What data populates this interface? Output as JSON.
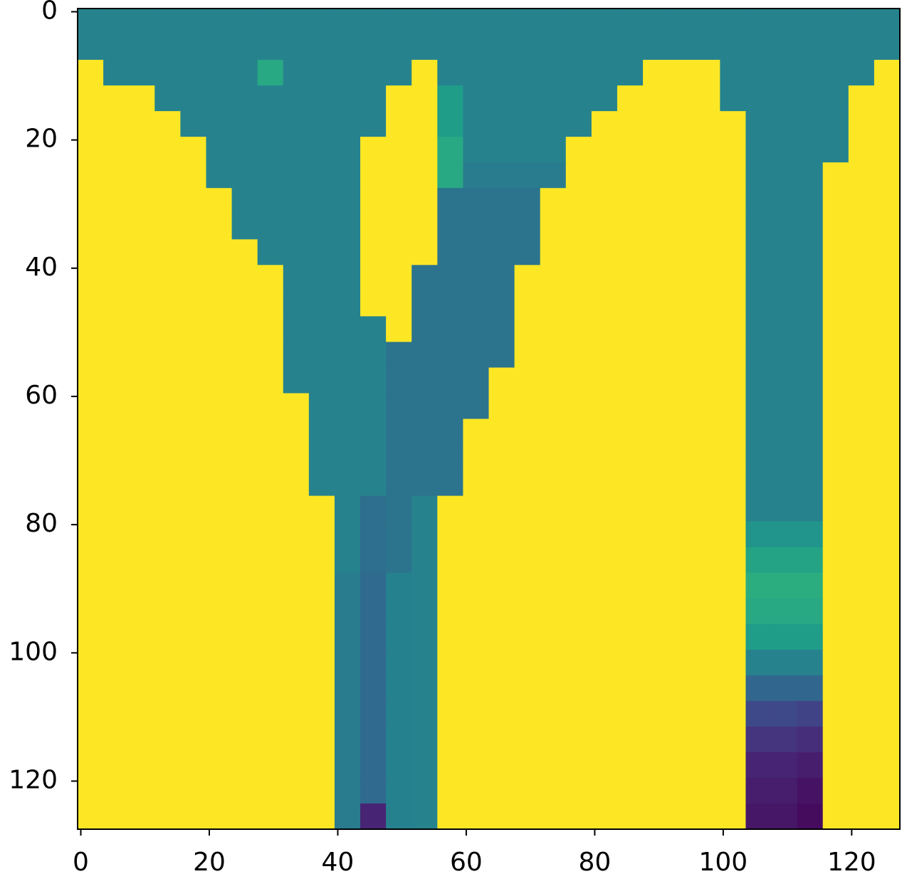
{
  "chart_data": {
    "type": "heatmap",
    "colormap": "viridis",
    "xlim": [
      -0.5,
      127.5
    ],
    "ylim": [
      127.5,
      -0.5
    ],
    "xticks": [
      0,
      20,
      40,
      60,
      80,
      100,
      120
    ],
    "yticks": [
      0,
      20,
      40,
      60,
      80,
      100,
      120
    ],
    "z": [
      [
        0.45,
        0.45,
        0.45,
        0.45,
        0.45,
        0.45,
        0.45,
        0.45,
        0.45,
        0.45,
        0.45,
        0.45,
        0.45,
        0.45,
        0.45,
        0.45,
        0.45,
        0.45,
        0.45,
        0.45,
        0.45,
        0.45,
        0.45,
        0.45,
        0.45,
        0.45,
        0.45,
        0.45,
        0.45,
        0.45,
        0.45,
        0.45
      ],
      [
        0.45,
        0.45,
        0.45,
        0.45,
        0.45,
        0.45,
        0.45,
        0.45,
        0.45,
        0.45,
        0.45,
        0.45,
        0.45,
        0.45,
        0.45,
        0.45,
        0.45,
        0.45,
        0.45,
        0.45,
        0.45,
        0.45,
        0.45,
        0.45,
        0.45,
        0.45,
        0.45,
        0.45,
        0.45,
        0.45,
        0.45,
        0.45
      ],
      [
        1,
        0.45,
        0.45,
        0.45,
        0.45,
        0.45,
        0.45,
        0.6,
        0.45,
        0.45,
        0.45,
        0.45,
        0.45,
        1,
        0.45,
        0.45,
        0.45,
        0.45,
        0.45,
        0.45,
        0.45,
        0.45,
        1,
        1,
        1,
        0.45,
        0.45,
        0.45,
        0.45,
        0.45,
        0.45,
        1
      ],
      [
        1,
        1,
        1,
        0.45,
        0.45,
        0.45,
        0.45,
        0.45,
        0.45,
        0.45,
        0.45,
        0.45,
        1,
        1,
        0.55,
        0.45,
        0.45,
        0.45,
        0.45,
        0.45,
        0.45,
        1,
        1,
        1,
        1,
        0.45,
        0.45,
        0.45,
        0.45,
        0.45,
        1,
        1
      ],
      [
        1,
        1,
        1,
        1,
        0.45,
        0.45,
        0.45,
        0.45,
        0.45,
        0.45,
        0.45,
        0.45,
        1,
        1,
        0.55,
        0.45,
        0.45,
        0.45,
        0.45,
        0.45,
        1,
        1,
        1,
        1,
        1,
        1,
        0.45,
        0.45,
        0.45,
        0.45,
        1,
        1
      ],
      [
        1,
        1,
        1,
        1,
        1,
        0.45,
        0.45,
        0.45,
        0.45,
        0.45,
        0.45,
        1,
        1,
        1,
        0.6,
        0.45,
        0.45,
        0.45,
        0.45,
        1,
        1,
        1,
        1,
        1,
        1,
        1,
        0.45,
        0.45,
        0.45,
        0.45,
        1,
        1
      ],
      [
        1,
        1,
        1,
        1,
        1,
        0.45,
        0.45,
        0.45,
        0.45,
        0.45,
        0.45,
        1,
        1,
        1,
        0.6,
        0.42,
        0.42,
        0.42,
        0.42,
        1,
        1,
        1,
        1,
        1,
        1,
        1,
        0.45,
        0.45,
        0.45,
        1,
        1,
        1
      ],
      [
        1,
        1,
        1,
        1,
        1,
        1,
        0.45,
        0.45,
        0.45,
        0.45,
        0.45,
        1,
        1,
        1,
        0.38,
        0.38,
        0.38,
        0.38,
        1,
        1,
        1,
        1,
        1,
        1,
        1,
        1,
        0.45,
        0.45,
        0.45,
        1,
        1,
        1
      ],
      [
        1,
        1,
        1,
        1,
        1,
        1,
        0.45,
        0.45,
        0.45,
        0.45,
        0.45,
        1,
        1,
        1,
        0.38,
        0.38,
        0.38,
        0.38,
        1,
        1,
        1,
        1,
        1,
        1,
        1,
        1,
        0.45,
        0.45,
        0.45,
        1,
        1,
        1
      ],
      [
        1,
        1,
        1,
        1,
        1,
        1,
        1,
        0.45,
        0.45,
        0.45,
        0.45,
        1,
        1,
        1,
        0.38,
        0.38,
        0.38,
        0.38,
        1,
        1,
        1,
        1,
        1,
        1,
        1,
        1,
        0.45,
        0.45,
        0.45,
        1,
        1,
        1
      ],
      [
        1,
        1,
        1,
        1,
        1,
        1,
        1,
        1,
        0.45,
        0.45,
        0.45,
        1,
        1,
        0.38,
        0.38,
        0.38,
        0.38,
        1,
        1,
        1,
        1,
        1,
        1,
        1,
        1,
        1,
        0.45,
        0.45,
        0.45,
        1,
        1,
        1
      ],
      [
        1,
        1,
        1,
        1,
        1,
        1,
        1,
        1,
        0.45,
        0.45,
        0.45,
        1,
        1,
        0.38,
        0.38,
        0.38,
        0.38,
        1,
        1,
        1,
        1,
        1,
        1,
        1,
        1,
        1,
        0.45,
        0.45,
        0.45,
        1,
        1,
        1
      ],
      [
        1,
        1,
        1,
        1,
        1,
        1,
        1,
        1,
        0.45,
        0.45,
        0.45,
        0.45,
        1,
        0.38,
        0.38,
        0.38,
        0.38,
        1,
        1,
        1,
        1,
        1,
        1,
        1,
        1,
        1,
        0.45,
        0.45,
        0.45,
        1,
        1,
        1
      ],
      [
        1,
        1,
        1,
        1,
        1,
        1,
        1,
        1,
        0.45,
        0.45,
        0.45,
        0.45,
        0.38,
        0.38,
        0.38,
        0.38,
        0.38,
        1,
        1,
        1,
        1,
        1,
        1,
        1,
        1,
        1,
        0.45,
        0.45,
        0.45,
        1,
        1,
        1
      ],
      [
        1,
        1,
        1,
        1,
        1,
        1,
        1,
        1,
        0.45,
        0.45,
        0.45,
        0.45,
        0.38,
        0.38,
        0.38,
        0.38,
        1,
        1,
        1,
        1,
        1,
        1,
        1,
        1,
        1,
        1,
        0.45,
        0.45,
        0.45,
        1,
        1,
        1
      ],
      [
        1,
        1,
        1,
        1,
        1,
        1,
        1,
        1,
        1,
        0.45,
        0.45,
        0.45,
        0.38,
        0.38,
        0.38,
        0.38,
        1,
        1,
        1,
        1,
        1,
        1,
        1,
        1,
        1,
        1,
        0.45,
        0.45,
        0.45,
        1,
        1,
        1
      ],
      [
        1,
        1,
        1,
        1,
        1,
        1,
        1,
        1,
        1,
        0.45,
        0.45,
        0.45,
        0.38,
        0.38,
        0.38,
        1,
        1,
        1,
        1,
        1,
        1,
        1,
        1,
        1,
        1,
        1,
        0.45,
        0.45,
        0.45,
        1,
        1,
        1
      ],
      [
        1,
        1,
        1,
        1,
        1,
        1,
        1,
        1,
        1,
        0.45,
        0.45,
        0.45,
        0.38,
        0.38,
        0.38,
        1,
        1,
        1,
        1,
        1,
        1,
        1,
        1,
        1,
        1,
        1,
        0.45,
        0.45,
        0.45,
        1,
        1,
        1
      ],
      [
        1,
        1,
        1,
        1,
        1,
        1,
        1,
        1,
        1,
        0.45,
        0.45,
        0.45,
        0.38,
        0.38,
        0.38,
        1,
        1,
        1,
        1,
        1,
        1,
        1,
        1,
        1,
        1,
        1,
        0.45,
        0.45,
        0.45,
        1,
        1,
        1
      ],
      [
        1,
        1,
        1,
        1,
        1,
        1,
        1,
        1,
        1,
        1,
        0.45,
        0.36,
        0.38,
        0.45,
        1,
        1,
        1,
        1,
        1,
        1,
        1,
        1,
        1,
        1,
        1,
        1,
        0.45,
        0.45,
        0.45,
        1,
        1,
        1
      ],
      [
        1,
        1,
        1,
        1,
        1,
        1,
        1,
        1,
        1,
        1,
        0.45,
        0.36,
        0.38,
        0.45,
        1,
        1,
        1,
        1,
        1,
        1,
        1,
        1,
        1,
        1,
        1,
        1,
        0.52,
        0.52,
        0.52,
        1,
        1,
        1
      ],
      [
        1,
        1,
        1,
        1,
        1,
        1,
        1,
        1,
        1,
        1,
        0.45,
        0.36,
        0.38,
        0.45,
        1,
        1,
        1,
        1,
        1,
        1,
        1,
        1,
        1,
        1,
        1,
        1,
        0.58,
        0.58,
        0.58,
        1,
        1,
        1
      ],
      [
        1,
        1,
        1,
        1,
        1,
        1,
        1,
        1,
        1,
        1,
        0.42,
        0.34,
        0.44,
        0.45,
        1,
        1,
        1,
        1,
        1,
        1,
        1,
        1,
        1,
        1,
        1,
        1,
        0.62,
        0.62,
        0.62,
        1,
        1,
        1
      ],
      [
        1,
        1,
        1,
        1,
        1,
        1,
        1,
        1,
        1,
        1,
        0.42,
        0.34,
        0.44,
        0.45,
        1,
        1,
        1,
        1,
        1,
        1,
        1,
        1,
        1,
        1,
        1,
        1,
        0.6,
        0.6,
        0.6,
        1,
        1,
        1
      ],
      [
        1,
        1,
        1,
        1,
        1,
        1,
        1,
        1,
        1,
        1,
        0.42,
        0.34,
        0.44,
        0.45,
        1,
        1,
        1,
        1,
        1,
        1,
        1,
        1,
        1,
        1,
        1,
        1,
        0.55,
        0.55,
        0.55,
        1,
        1,
        1
      ],
      [
        1,
        1,
        1,
        1,
        1,
        1,
        1,
        1,
        1,
        1,
        0.42,
        0.34,
        0.44,
        0.45,
        1,
        1,
        1,
        1,
        1,
        1,
        1,
        1,
        1,
        1,
        1,
        1,
        0.45,
        0.45,
        0.45,
        1,
        1,
        1
      ],
      [
        1,
        1,
        1,
        1,
        1,
        1,
        1,
        1,
        1,
        1,
        0.42,
        0.34,
        0.44,
        0.45,
        1,
        1,
        1,
        1,
        1,
        1,
        1,
        1,
        1,
        1,
        1,
        1,
        0.33,
        0.33,
        0.33,
        1,
        1,
        1
      ],
      [
        1,
        1,
        1,
        1,
        1,
        1,
        1,
        1,
        1,
        1,
        0.42,
        0.34,
        0.44,
        0.45,
        1,
        1,
        1,
        1,
        1,
        1,
        1,
        1,
        1,
        1,
        1,
        1,
        0.22,
        0.22,
        0.2,
        1,
        1,
        1
      ],
      [
        1,
        1,
        1,
        1,
        1,
        1,
        1,
        1,
        1,
        1,
        0.42,
        0.34,
        0.44,
        0.45,
        1,
        1,
        1,
        1,
        1,
        1,
        1,
        1,
        1,
        1,
        1,
        1,
        0.15,
        0.15,
        0.13,
        1,
        1,
        1
      ],
      [
        1,
        1,
        1,
        1,
        1,
        1,
        1,
        1,
        1,
        1,
        0.42,
        0.34,
        0.44,
        0.45,
        1,
        1,
        1,
        1,
        1,
        1,
        1,
        1,
        1,
        1,
        1,
        1,
        0.1,
        0.1,
        0.08,
        1,
        1,
        1
      ],
      [
        1,
        1,
        1,
        1,
        1,
        1,
        1,
        1,
        1,
        1,
        0.42,
        0.34,
        0.44,
        0.45,
        1,
        1,
        1,
        1,
        1,
        1,
        1,
        1,
        1,
        1,
        1,
        1,
        0.08,
        0.08,
        0.05,
        1,
        1,
        1
      ],
      [
        1,
        1,
        1,
        1,
        1,
        1,
        1,
        1,
        1,
        1,
        0.42,
        0.1,
        0.44,
        0.45,
        1,
        1,
        1,
        1,
        1,
        1,
        1,
        1,
        1,
        1,
        1,
        1,
        0.06,
        0.06,
        0.03,
        1,
        1,
        1
      ]
    ]
  }
}
